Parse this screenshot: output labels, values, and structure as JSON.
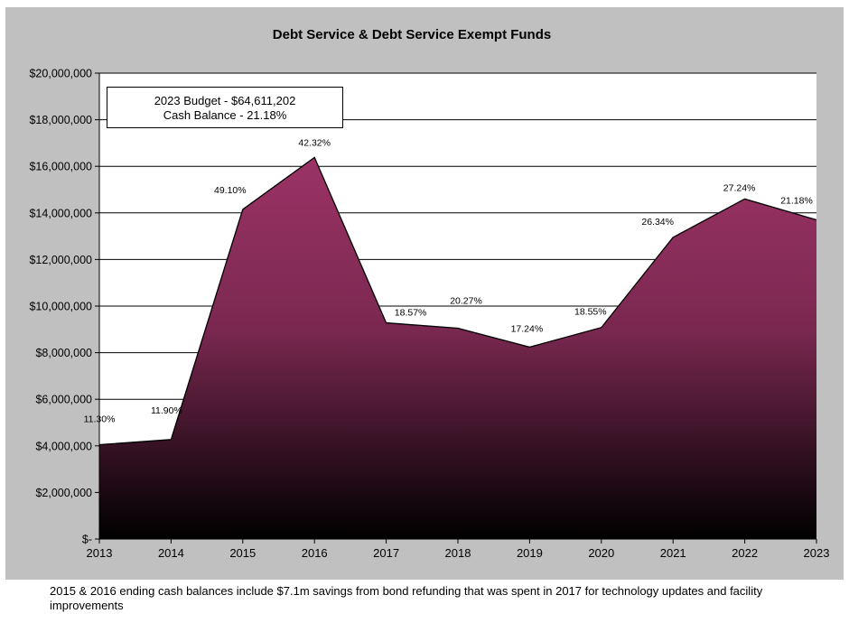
{
  "chart_data": {
    "type": "area",
    "title": "Debt Service & Debt Service Exempt Funds",
    "x": [
      "2013",
      "2014",
      "2015",
      "2016",
      "2017",
      "2018",
      "2019",
      "2020",
      "2021",
      "2022",
      "2023"
    ],
    "values": [
      4050000,
      4270000,
      14150000,
      16380000,
      9280000,
      9050000,
      8240000,
      9080000,
      12950000,
      14600000,
      13700000
    ],
    "data_labels": [
      "11.30%",
      "11.90%",
      "49.10%",
      "42.32%",
      "18.57%",
      "20.27%",
      "17.24%",
      "18.55%",
      "26.34%",
      "27.24%",
      "21.18%"
    ],
    "y_ticks": [
      "$-",
      "$2,000,000",
      "$4,000,000",
      "$6,000,000",
      "$8,000,000",
      "$10,000,000",
      "$12,000,000",
      "$14,000,000",
      "$16,000,000",
      "$18,000,000",
      "$20,000,000"
    ],
    "ylim": [
      0,
      20000000
    ],
    "grid": true,
    "colors": {
      "fill_top": "#9b3366",
      "fill_bottom": "#000000",
      "line": "#000000"
    }
  },
  "info_box": {
    "line1": "2023 Budget - $64,611,202",
    "line2": "Cash Balance - 21.18%"
  },
  "footnote": "2015 & 2016 ending cash balances include $7.1m savings from bond refunding that was spent in 2017 for technology updates and facility improvements"
}
